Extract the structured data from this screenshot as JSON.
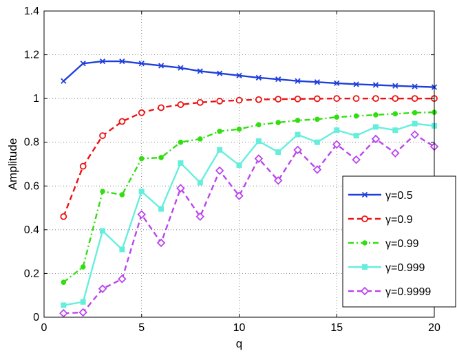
{
  "chart_data": {
    "type": "line",
    "title": "",
    "xlabel": "q",
    "ylabel": "Amplitude",
    "xlim": [
      0,
      20
    ],
    "ylim": [
      0,
      1.4
    ],
    "xticks": [
      "0",
      "5",
      "10",
      "15",
      "20"
    ],
    "yticks": [
      "0",
      "0.2",
      "0.4",
      "0.6",
      "0.8",
      "1",
      "1.2",
      "1.4"
    ],
    "grid": true,
    "legend_position": "right",
    "x": [
      1,
      2,
      3,
      4,
      5,
      6,
      7,
      8,
      9,
      10,
      11,
      12,
      13,
      14,
      15,
      16,
      17,
      18,
      19,
      20
    ],
    "series": [
      {
        "name": "γ=0.5",
        "color": "#1f3fdc",
        "style": "solid",
        "marker": "x",
        "values": [
          1.08,
          1.16,
          1.17,
          1.17,
          1.16,
          1.15,
          1.14,
          1.125,
          1.115,
          1.105,
          1.095,
          1.088,
          1.08,
          1.075,
          1.07,
          1.065,
          1.062,
          1.058,
          1.055,
          1.052
        ]
      },
      {
        "name": "γ=0.9",
        "color": "#ee1111",
        "style": "dashed",
        "marker": "circle",
        "values": [
          0.46,
          0.69,
          0.83,
          0.895,
          0.935,
          0.958,
          0.972,
          0.982,
          0.988,
          0.992,
          0.995,
          0.997,
          0.998,
          0.999,
          1.0,
          1.0,
          1.0,
          1.0,
          1.0,
          1.0
        ]
      },
      {
        "name": "γ=0.99",
        "color": "#33dd11",
        "style": "dashdot",
        "marker": "dot",
        "values": [
          0.16,
          0.23,
          0.575,
          0.56,
          0.725,
          0.73,
          0.8,
          0.815,
          0.85,
          0.86,
          0.88,
          0.89,
          0.9,
          0.905,
          0.915,
          0.92,
          0.925,
          0.93,
          0.935,
          0.937
        ]
      },
      {
        "name": "γ=0.999",
        "color": "#66eedd",
        "style": "solid",
        "marker": "square",
        "values": [
          0.055,
          0.07,
          0.395,
          0.31,
          0.575,
          0.495,
          0.705,
          0.615,
          0.765,
          0.695,
          0.805,
          0.755,
          0.835,
          0.8,
          0.855,
          0.83,
          0.87,
          0.855,
          0.885,
          0.875
        ]
      },
      {
        "name": "γ=0.9999",
        "color": "#bb44ee",
        "style": "dashed",
        "marker": "diamond",
        "values": [
          0.018,
          0.022,
          0.13,
          0.175,
          0.47,
          0.34,
          0.59,
          0.46,
          0.67,
          0.555,
          0.725,
          0.625,
          0.765,
          0.675,
          0.79,
          0.72,
          0.815,
          0.75,
          0.835,
          0.78
        ]
      }
    ]
  }
}
